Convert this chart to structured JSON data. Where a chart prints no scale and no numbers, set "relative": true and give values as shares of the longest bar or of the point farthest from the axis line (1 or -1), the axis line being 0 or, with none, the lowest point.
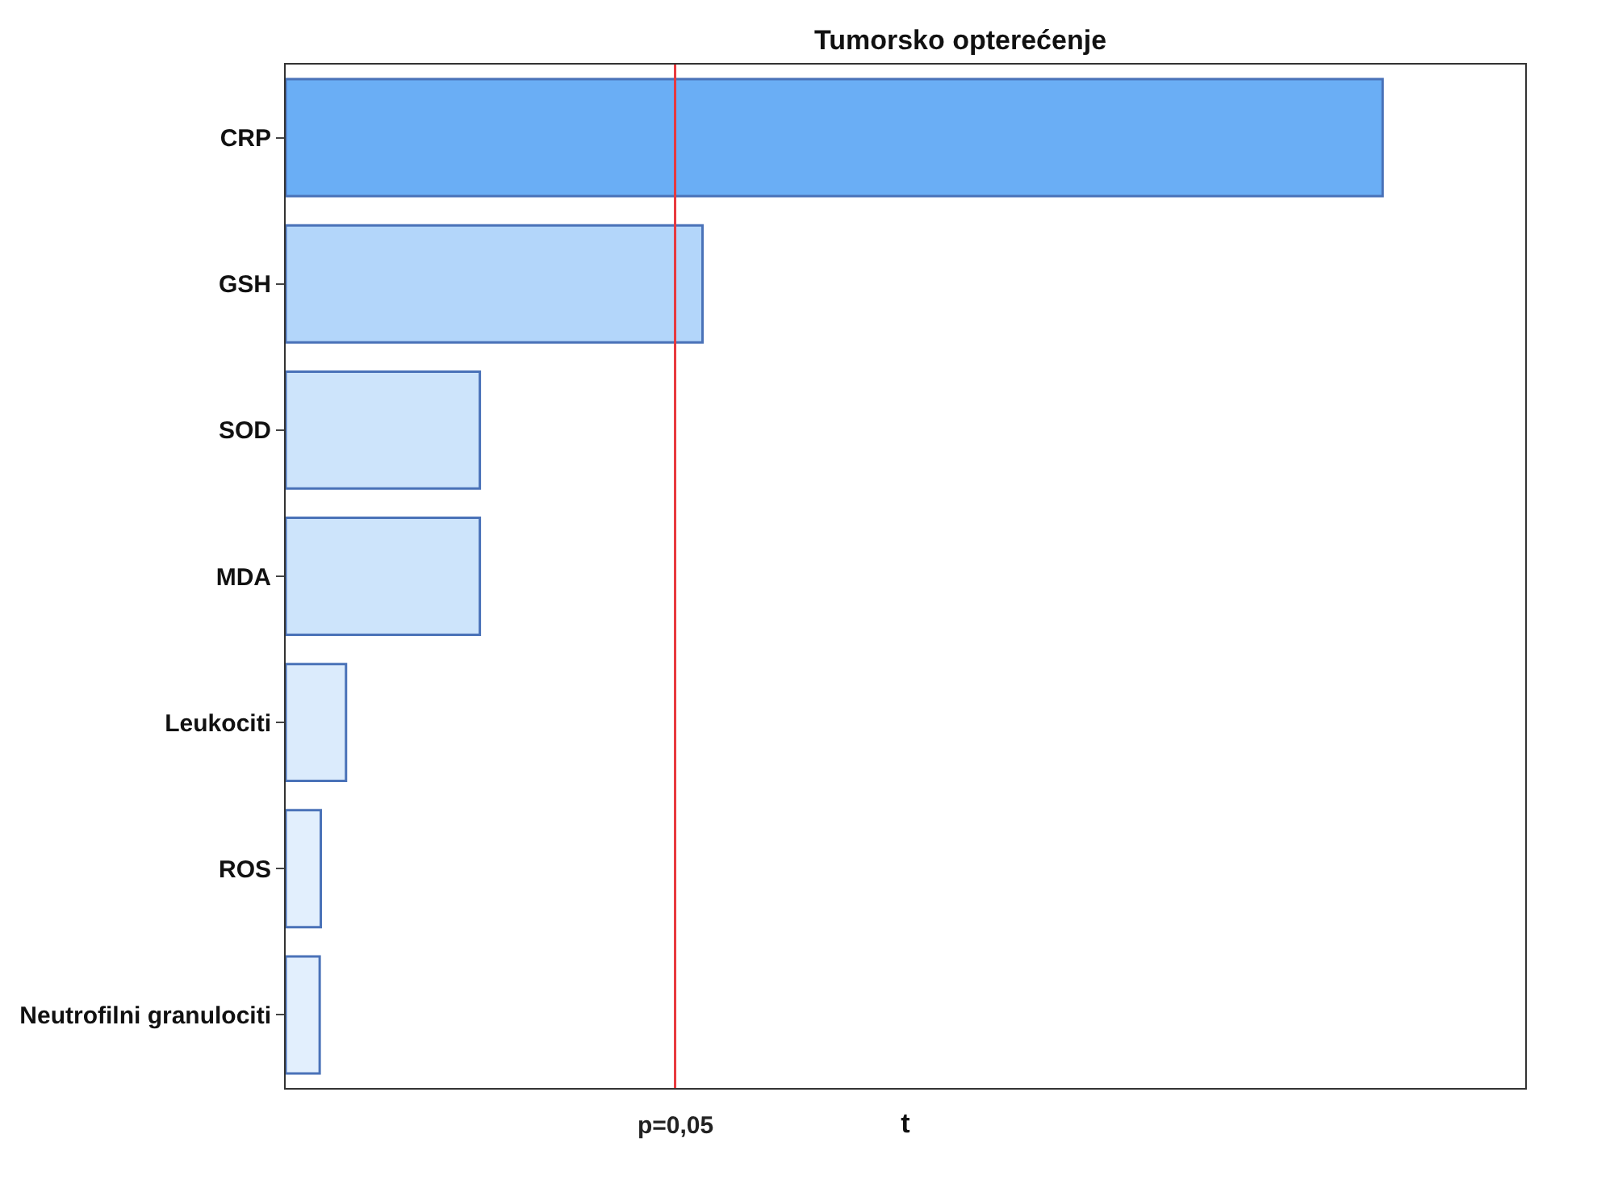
{
  "chart_data": {
    "type": "bar",
    "orientation": "horizontal",
    "relative": true,
    "title": "Tumorsko opterećenje",
    "xlabel": "t",
    "categories": [
      "CRP",
      "GSH",
      "SOD",
      "MDA",
      "Leukociti",
      "ROS",
      "Neutrofilni granulociti"
    ],
    "values": [
      1,
      0.38,
      0.177,
      0.177,
      0.055,
      0.032,
      0.031
    ],
    "colors": [
      "#6aaef5",
      "#b3d6fa",
      "#cde4fb",
      "#cde4fb",
      "#dbebfc",
      "#e2effd",
      "#e2effd"
    ],
    "ref_lines": [
      {
        "axis": "x",
        "value": 0.355,
        "color": "#e8383d"
      }
    ],
    "annotations": [
      "p=0,05"
    ],
    "legend": false
  }
}
